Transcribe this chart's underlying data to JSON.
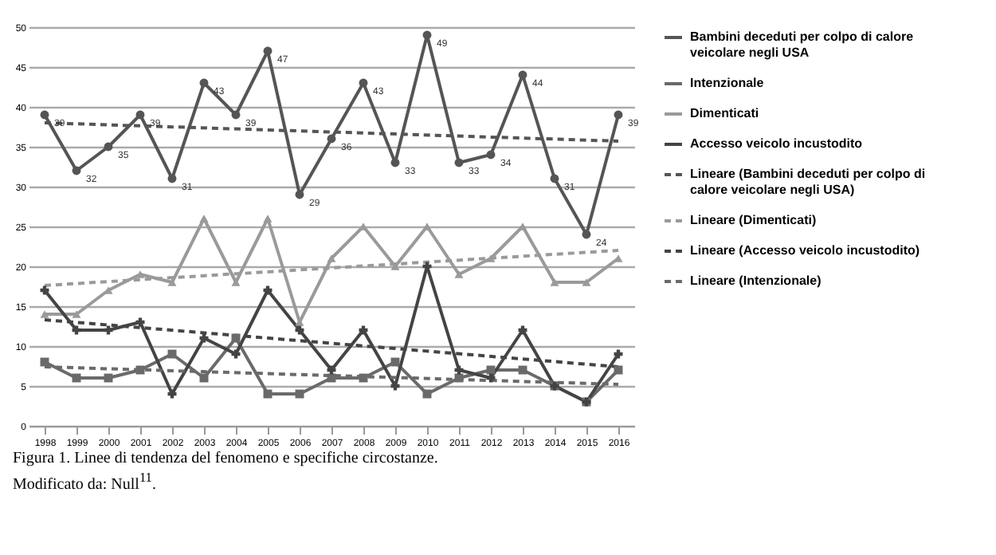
{
  "chart_data": {
    "type": "line",
    "categories": [
      "1998",
      "1999",
      "2000",
      "2001",
      "2002",
      "2003",
      "2004",
      "2005",
      "2006",
      "2007",
      "2008",
      "2009",
      "2010",
      "2011",
      "2012",
      "2013",
      "2014",
      "2015",
      "2016"
    ],
    "series": [
      {
        "name": "Bambini deceduti per colpo di calore veicolare negli USA",
        "color": "#555555",
        "marker": "circle",
        "values": [
          39,
          32,
          35,
          39,
          31,
          43,
          39,
          47,
          29,
          36,
          43,
          33,
          49,
          33,
          34,
          44,
          31,
          24,
          39
        ],
        "value_labels": [
          "39",
          "32",
          "35",
          "39",
          "31",
          "43",
          "39",
          "47",
          "29",
          "36",
          "43",
          "33",
          "49",
          "33",
          "34",
          "44",
          "31",
          "24",
          "39"
        ]
      },
      {
        "name": "Intenzionale",
        "color": "#6a6a6a",
        "marker": "square",
        "values": [
          8,
          6,
          6,
          7,
          9,
          6,
          11,
          4,
          4,
          6,
          6,
          8,
          4,
          6,
          7,
          7,
          5,
          3,
          7
        ]
      },
      {
        "name": "Dimenticati",
        "color": "#9a9a9a",
        "marker": "triangle",
        "values": [
          14,
          14,
          17,
          19,
          18,
          26,
          18,
          26,
          13,
          21,
          25,
          20,
          25,
          19,
          21,
          25,
          18,
          18,
          21
        ]
      },
      {
        "name": "Accesso veicolo incustodito",
        "color": "#444444",
        "marker": "cross",
        "values": [
          17,
          12,
          12,
          13,
          4,
          11,
          9,
          17,
          12,
          7,
          12,
          5,
          20,
          7,
          6,
          12,
          5,
          3,
          9
        ]
      },
      {
        "name": "Lineare (Bambini deceduti per colpo di calore veicolare negli USA)",
        "color": "#555555",
        "marker": "none",
        "line_style": "dashed",
        "values": [
          38,
          null,
          null,
          null,
          null,
          null,
          null,
          null,
          null,
          null,
          null,
          null,
          null,
          null,
          null,
          null,
          null,
          null,
          35.7
        ]
      },
      {
        "name": "Lineare (Dimenticati)",
        "color": "#9a9a9a",
        "marker": "none",
        "line_style": "dashed",
        "values": [
          17.6,
          null,
          null,
          null,
          null,
          null,
          null,
          null,
          null,
          null,
          null,
          null,
          null,
          null,
          null,
          null,
          null,
          null,
          22
        ]
      },
      {
        "name": "Lineare (Accesso veicolo incustodito)",
        "color": "#444444",
        "marker": "none",
        "line_style": "dashed",
        "values": [
          13.3,
          null,
          null,
          null,
          null,
          null,
          null,
          null,
          null,
          null,
          null,
          null,
          null,
          null,
          null,
          null,
          null,
          null,
          7.4
        ]
      },
      {
        "name": "Lineare (Intenzionale)",
        "color": "#6a6a6a",
        "marker": "none",
        "line_style": "dashed",
        "values": [
          7.4,
          null,
          null,
          null,
          null,
          null,
          null,
          null,
          null,
          null,
          null,
          null,
          null,
          null,
          null,
          null,
          null,
          null,
          5.2
        ]
      }
    ],
    "ylim": [
      0,
      50
    ],
    "yticks": [
      0,
      5,
      10,
      15,
      20,
      25,
      30,
      35,
      40,
      45,
      50
    ],
    "grid": "y",
    "legend": "right",
    "annotations": [
      "Figura 1. Linee di tendenza del fenomeno e specifiche circostanze.",
      "Modificato da: Null$^{11}$."
    ]
  }
}
